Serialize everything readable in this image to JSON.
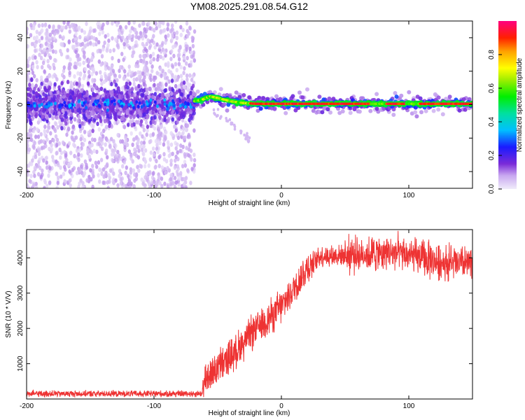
{
  "title": "YM08.2025.291.08.54.G12",
  "chart_data": [
    {
      "type": "heatmap",
      "name": "spectrogram",
      "xlabel": "Height of straight line (km)",
      "ylabel": "Frequency (Hz)",
      "xlim": [
        -200,
        150
      ],
      "ylim": [
        -50,
        50
      ],
      "xticks": [
        -200,
        -100,
        0,
        100
      ],
      "yticks": [
        -40,
        -20,
        0,
        20,
        40
      ],
      "colorbar": {
        "label": "Normalized spectral amplitude",
        "range": [
          0,
          1
        ],
        "ticks": [
          "0.0",
          "0.2",
          "0.4",
          "0.6",
          "0.8"
        ]
      },
      "noise_region_x": [
        -200,
        -68
      ],
      "ridge": [
        {
          "x": -68,
          "y": 2
        },
        {
          "x": -62,
          "y": 3
        },
        {
          "x": -56,
          "y": 5
        },
        {
          "x": -50,
          "y": 4
        },
        {
          "x": -45,
          "y": 3
        },
        {
          "x": -40,
          "y": 2
        },
        {
          "x": -30,
          "y": 1
        },
        {
          "x": -20,
          "y": 0.5
        },
        {
          "x": 0,
          "y": 0.5
        },
        {
          "x": 50,
          "y": 0.5
        },
        {
          "x": 100,
          "y": 0.5
        },
        {
          "x": 150,
          "y": 0.5
        }
      ],
      "tail": [
        {
          "x": -55,
          "y": -3
        },
        {
          "x": -45,
          "y": -8
        },
        {
          "x": -35,
          "y": -14
        },
        {
          "x": -28,
          "y": -19
        },
        {
          "x": -20,
          "y": -24
        }
      ]
    },
    {
      "type": "line",
      "name": "snr",
      "xlabel": "Height of straight line (km)",
      "ylabel": "SNR (10 * V/V)",
      "xlim": [
        -200,
        150
      ],
      "ylim": [
        0,
        4800
      ],
      "xticks": [
        -200,
        -100,
        0,
        100
      ],
      "yticks": [
        1000,
        2000,
        3000,
        4000
      ],
      "color": "#ee3333",
      "trend": [
        {
          "x": -200,
          "y": 150
        },
        {
          "x": -62,
          "y": 150
        },
        {
          "x": -60,
          "y": 600
        },
        {
          "x": -40,
          "y": 1200
        },
        {
          "x": -20,
          "y": 2000
        },
        {
          "x": 0,
          "y": 2600
        },
        {
          "x": 20,
          "y": 3700
        },
        {
          "x": 30,
          "y": 4050
        },
        {
          "x": 60,
          "y": 4100
        },
        {
          "x": 90,
          "y": 4150
        },
        {
          "x": 120,
          "y": 3900
        },
        {
          "x": 150,
          "y": 3800
        }
      ]
    }
  ]
}
